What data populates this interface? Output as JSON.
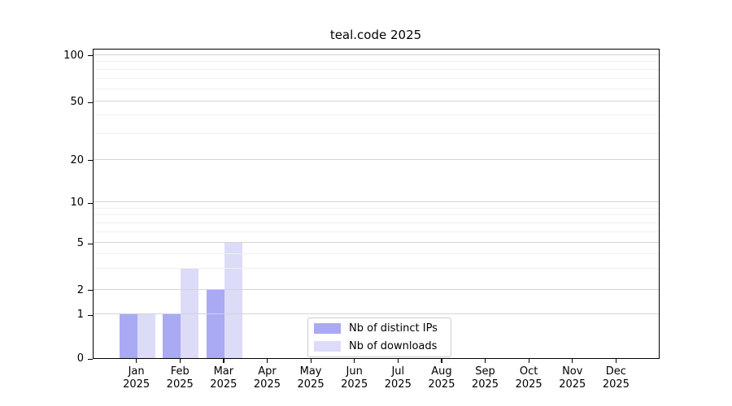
{
  "chart_data": {
    "type": "bar",
    "title": "teal.code 2025",
    "categories": [
      "Jan 2025",
      "Feb 2025",
      "Mar 2025",
      "Apr 2025",
      "May 2025",
      "Jun 2025",
      "Jul 2025",
      "Aug 2025",
      "Sep 2025",
      "Oct 2025",
      "Nov 2025",
      "Dec 2025"
    ],
    "series": [
      {
        "name": "Nb of distinct IPs",
        "color": "#a9a9f4",
        "values": [
          1,
          1,
          2,
          0,
          0,
          0,
          0,
          0,
          0,
          0,
          0,
          0
        ]
      },
      {
        "name": "Nb of downloads",
        "color": "#dcdcf8",
        "values": [
          1,
          3,
          5,
          0,
          0,
          0,
          0,
          0,
          0,
          0,
          0,
          0
        ]
      }
    ],
    "xlabel": "",
    "ylabel": "",
    "y_axis": {
      "scale": "log-like",
      "ticks": [
        0,
        1,
        2,
        5,
        10,
        20,
        50,
        100
      ],
      "minor_gridlines": [
        3,
        4,
        6,
        7,
        8,
        9,
        30,
        40,
        60,
        70,
        80,
        90
      ],
      "ylim": [
        0,
        108
      ]
    },
    "grid": "horizontal, major and minor, drawn above bars",
    "legend": {
      "position": "bottom-center",
      "entries": [
        "Nb of distinct IPs",
        "Nb of downloads"
      ]
    }
  },
  "colors": {
    "background": "#ffffff",
    "axis_spine": "#000000",
    "major_grid": "#d4d4d4",
    "minor_grid": "#efefef",
    "legend_border": "#cccccc",
    "text": "#000000"
  }
}
